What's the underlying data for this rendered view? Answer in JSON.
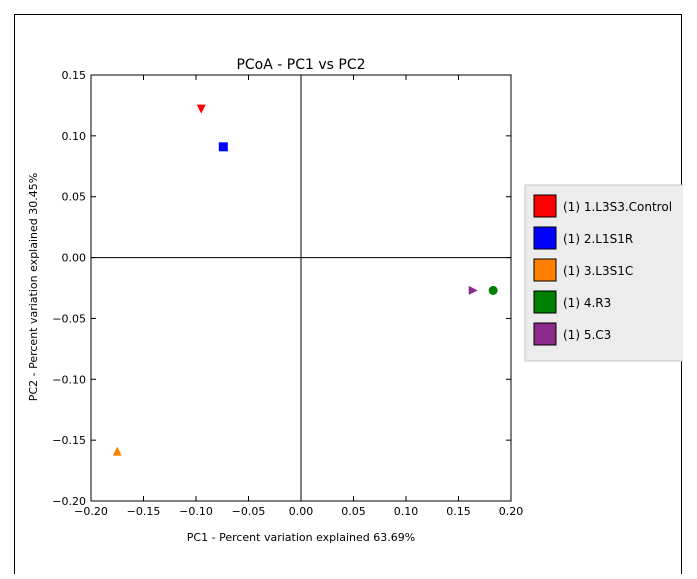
{
  "chart_data": {
    "type": "scatter",
    "title": "PCoA - PC1 vs PC2",
    "xlabel": "PC1 - Percent variation explained 63.69%",
    "ylabel": "PC2 - Percent variation explained 30.45%",
    "xlim": [
      -0.2,
      0.2
    ],
    "ylim": [
      -0.2,
      0.15
    ],
    "xticks": [
      "−0.20",
      "−0.15",
      "−0.10",
      "−0.05",
      "0.00",
      "0.05",
      "0.10",
      "0.15",
      "0.20"
    ],
    "yticks": [
      "0.15",
      "0.10",
      "0.05",
      "0.00",
      "−0.05",
      "−0.10",
      "−0.15",
      "−0.20"
    ],
    "grid": false,
    "reference_lines": {
      "x": 0,
      "y": 0
    },
    "legend_position": "outside-right",
    "series": [
      {
        "name": "(1) 1.L3S3.Control",
        "color": "#ff0000",
        "marker": "triangle-down",
        "x": -0.095,
        "y": 0.122
      },
      {
        "name": "(1) 2.L1S1R",
        "color": "#0000ff",
        "marker": "square",
        "x": -0.074,
        "y": 0.091
      },
      {
        "name": "(1) 3.L3S1C",
        "color": "#ff7f00",
        "marker": "triangle-up",
        "x": -0.175,
        "y": -0.159
      },
      {
        "name": "(1) 4.R3",
        "color": "#008000",
        "marker": "circle",
        "x": 0.183,
        "y": -0.027
      },
      {
        "name": "(1) 5.C3",
        "color": "#8b2a8b",
        "marker": "triangle-right",
        "x": 0.164,
        "y": -0.027
      }
    ]
  }
}
